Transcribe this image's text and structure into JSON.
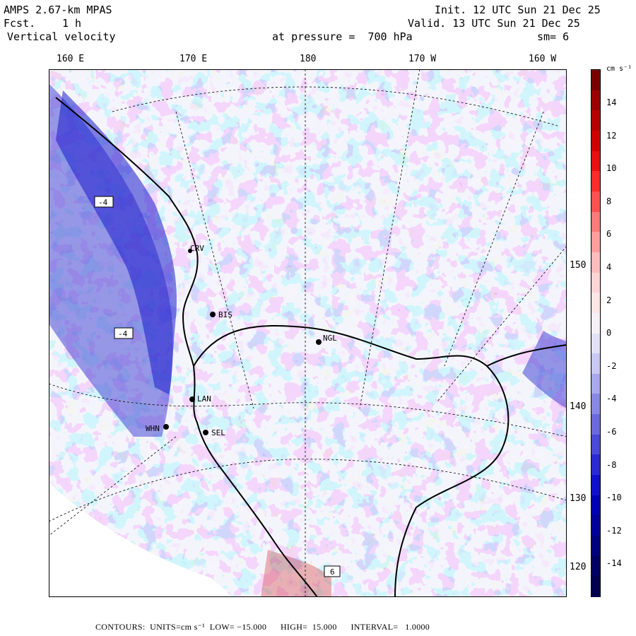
{
  "header": {
    "model": "AMPS 2.67-km MPAS",
    "forecast_label": "Fcst.",
    "forecast_value": "1 h",
    "field": "Vertical velocity",
    "init": "Init. 12 UTC Sun 21 Dec 25",
    "valid": "Valid. 13 UTC Sun 21 Dec 25",
    "level": "at pressure =  700 hPa",
    "smoothing": "sm= 6"
  },
  "longitude_labels": [
    "160 E",
    "170 E",
    "180",
    "170 W",
    "160 W"
  ],
  "latitude_labels": [
    "150 W",
    "140 W",
    "130 W",
    "120 W"
  ],
  "stations": [
    {
      "id": "CRV"
    },
    {
      "id": "BIS"
    },
    {
      "id": "NGL"
    },
    {
      "id": "LAN"
    },
    {
      "id": "WHN"
    },
    {
      "id": "SEL"
    }
  ],
  "contour_boxes": [
    "-4",
    "-4",
    "6"
  ],
  "colorbar": {
    "unit": "cm s⁻¹",
    "ticks": [
      "14",
      "12",
      "10",
      "8",
      "6",
      "4",
      "2",
      "0",
      "-2",
      "-4",
      "-6",
      "-8",
      "-10",
      "-12",
      "-14"
    ],
    "colors": [
      "#7a0000",
      "#9c0000",
      "#b80000",
      "#d00000",
      "#e81010",
      "#ff2a2a",
      "#ff5050",
      "#ff7a7a",
      "#ff9c9c",
      "#ffbcbc",
      "#ffd4d4",
      "#ffe6e6",
      "#f4f0f6",
      "#e2e2f6",
      "#c8c8f2",
      "#a8a8ec",
      "#8888e4",
      "#6a6ade",
      "#4a4ad8",
      "#2a2ad4",
      "#1010cc",
      "#0000b4",
      "#00009a",
      "#00007e",
      "#000064",
      "#00004e"
    ],
    "color_semantics": "dark red = strong upward motion, dark blue = strong downward motion"
  },
  "footer": {
    "contours_label": "CONTOURS:",
    "units": "UNITS=cm s⁻¹",
    "low": "LOW= −15.000",
    "high": "HIGH=  15.000",
    "interval": "INTERVAL=   1.0000"
  }
}
